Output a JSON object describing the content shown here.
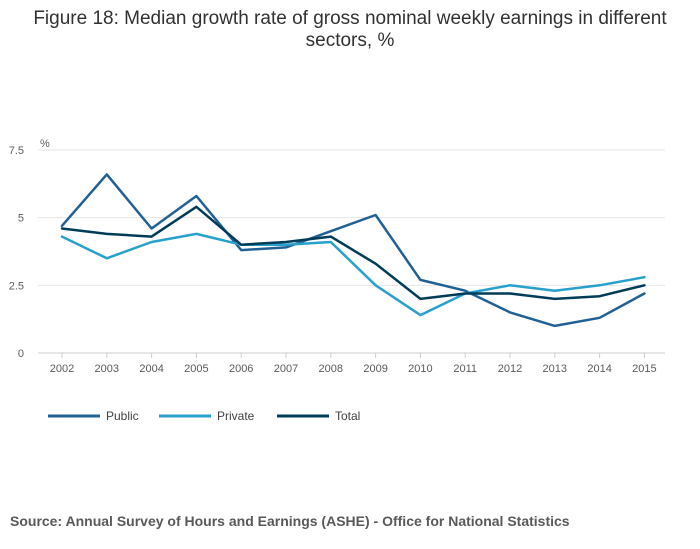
{
  "chart_data": {
    "type": "line",
    "title": "Figure 18: Median growth rate of gross nominal weekly earnings in different sectors, %",
    "ylabel": "%",
    "xlabel": "",
    "ylim": [
      0,
      7.5
    ],
    "yticks": [
      0,
      2.5,
      5,
      7.5
    ],
    "ytick_labels": [
      "0",
      "2.5",
      "5",
      "7.5"
    ],
    "categories": [
      "2002",
      "2003",
      "2004",
      "2005",
      "2006",
      "2007",
      "2008",
      "2009",
      "2010",
      "2011",
      "2012",
      "2013",
      "2014",
      "2015"
    ],
    "series": [
      {
        "name": "Public",
        "color": "#206095",
        "values": [
          4.7,
          6.6,
          4.6,
          5.8,
          3.8,
          3.9,
          4.5,
          5.1,
          2.7,
          2.3,
          1.5,
          1.0,
          1.3,
          2.2
        ]
      },
      {
        "name": "Private",
        "color": "#27a0cc",
        "values": [
          4.3,
          3.5,
          4.1,
          4.4,
          4.0,
          4.0,
          4.1,
          2.5,
          1.4,
          2.2,
          2.5,
          2.3,
          2.5,
          2.8
        ]
      },
      {
        "name": "Total",
        "color": "#003c57",
        "values": [
          4.6,
          4.4,
          4.3,
          5.4,
          4.0,
          4.1,
          4.3,
          3.3,
          2.0,
          2.2,
          2.2,
          2.0,
          2.1,
          2.5
        ]
      }
    ],
    "grid": true,
    "legend": "bottom-left",
    "source": "Source: Annual Survey of Hours and Earnings (ASHE) - Office for National Statistics"
  }
}
